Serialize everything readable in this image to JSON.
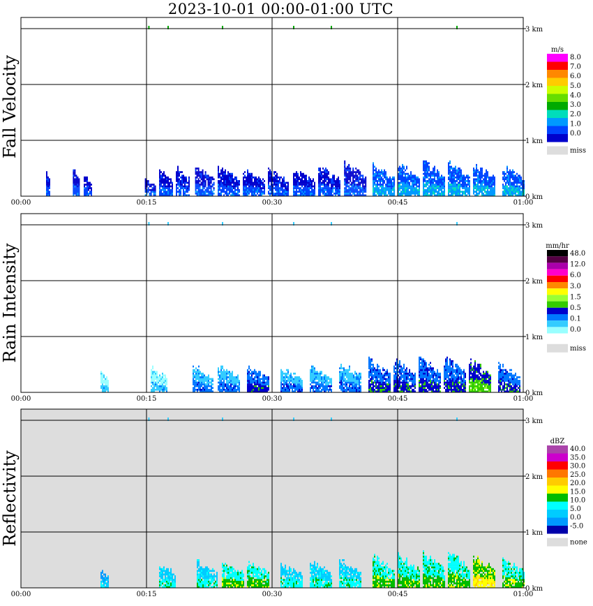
{
  "title": "2023-10-01   00:00-01:00 UTC",
  "x_ticks": [
    "00:00",
    "00:15",
    "00:30",
    "00:45",
    "01:00"
  ],
  "y_ticks": [
    "0 km",
    "1 km",
    "2 km",
    "3 km"
  ],
  "chart_data": [
    {
      "type": "heatmap",
      "panel": "Fall Velocity",
      "ylabel": "Fall Velocity",
      "x_range_min": [
        0,
        60
      ],
      "ylim_km": [
        0,
        3.2
      ],
      "grid": true,
      "background": "#ffffff",
      "colorbar": {
        "unit": "m/s",
        "tick_labels": [
          "8.0",
          "7.0",
          "6.0",
          "5.0",
          "4.0",
          "3.0",
          "2.0",
          "1.0",
          "0.0"
        ],
        "colors": [
          "#ff00ff",
          "#ff0000",
          "#ff8800",
          "#ffcc00",
          "#ccff00",
          "#66dd00",
          "#00aa00",
          "#00ddbb",
          "#0099ff",
          "#0044ff",
          "#0000cc"
        ],
        "missing_label": "miss",
        "missing_color": "#dddddd"
      },
      "bursts": [
        {
          "t": 3.0,
          "w": 0.5,
          "top_km": 0.4,
          "level": 0
        },
        {
          "t": 6.2,
          "w": 0.8,
          "top_km": 0.45,
          "level": 0
        },
        {
          "t": 7.5,
          "w": 1.0,
          "top_km": 0.35,
          "level": 0
        },
        {
          "t": 14.8,
          "w": 1.2,
          "top_km": 0.3,
          "level": 0
        },
        {
          "t": 16.5,
          "w": 1.6,
          "top_km": 0.45,
          "level": 0
        },
        {
          "t": 18.5,
          "w": 1.6,
          "top_km": 0.5,
          "level": 0
        },
        {
          "t": 20.8,
          "w": 2.2,
          "top_km": 0.5,
          "level": 0
        },
        {
          "t": 23.5,
          "w": 2.6,
          "top_km": 0.5,
          "level": 0
        },
        {
          "t": 26.5,
          "w": 2.6,
          "top_km": 0.45,
          "level": 0
        },
        {
          "t": 29.5,
          "w": 2.4,
          "top_km": 0.45,
          "level": 0
        },
        {
          "t": 32.5,
          "w": 2.6,
          "top_km": 0.45,
          "level": 0
        },
        {
          "t": 35.5,
          "w": 2.6,
          "top_km": 0.5,
          "level": 0
        },
        {
          "t": 38.6,
          "w": 2.6,
          "top_km": 0.55,
          "level": 0
        },
        {
          "t": 42.0,
          "w": 2.6,
          "top_km": 0.55,
          "level": 1
        },
        {
          "t": 45.0,
          "w": 2.6,
          "top_km": 0.55,
          "level": 1
        },
        {
          "t": 48.0,
          "w": 2.6,
          "top_km": 0.6,
          "level": 1
        },
        {
          "t": 51.0,
          "w": 2.6,
          "top_km": 0.6,
          "level": 1
        },
        {
          "t": 54.0,
          "w": 2.6,
          "top_km": 0.55,
          "level": 1
        },
        {
          "t": 57.5,
          "w": 2.6,
          "top_km": 0.5,
          "level": 1
        }
      ]
    },
    {
      "type": "heatmap",
      "panel": "Rain Intensity",
      "ylabel": "Rain Intensity",
      "x_range_min": [
        0,
        60
      ],
      "ylim_km": [
        0,
        3.2
      ],
      "grid": true,
      "background": "#ffffff",
      "colorbar": {
        "unit": "mm/hr",
        "tick_labels": [
          "48.0",
          "12.0",
          "6.0",
          "3.0",
          "1.5",
          "0.5",
          "0.1",
          "0.0"
        ],
        "colors": [
          "#000000",
          "#550044",
          "#aa00aa",
          "#ff00cc",
          "#ff0000",
          "#ff8800",
          "#ffff00",
          "#99ff33",
          "#33cc00",
          "#0000cc",
          "#0077ff",
          "#33ccff",
          "#99ffff",
          "#ffffff"
        ],
        "missing_label": "miss",
        "missing_color": "#dddddd"
      },
      "bursts": [
        {
          "t": 9.5,
          "w": 1.0,
          "top_km": 0.35,
          "level": 0
        },
        {
          "t": 15.5,
          "w": 2.0,
          "top_km": 0.45,
          "level": 0
        },
        {
          "t": 20.5,
          "w": 2.4,
          "top_km": 0.45,
          "level": 1
        },
        {
          "t": 23.5,
          "w": 2.6,
          "top_km": 0.45,
          "level": 1
        },
        {
          "t": 27.0,
          "w": 2.6,
          "top_km": 0.45,
          "level": 2
        },
        {
          "t": 31.0,
          "w": 2.6,
          "top_km": 0.4,
          "level": 1
        },
        {
          "t": 34.5,
          "w": 2.6,
          "top_km": 0.45,
          "level": 1
        },
        {
          "t": 38.0,
          "w": 2.6,
          "top_km": 0.5,
          "level": 1
        },
        {
          "t": 41.5,
          "w": 2.6,
          "top_km": 0.55,
          "level": 2
        },
        {
          "t": 44.5,
          "w": 2.6,
          "top_km": 0.55,
          "level": 2
        },
        {
          "t": 47.5,
          "w": 2.6,
          "top_km": 0.6,
          "level": 2
        },
        {
          "t": 50.5,
          "w": 2.6,
          "top_km": 0.6,
          "level": 2
        },
        {
          "t": 53.5,
          "w": 2.6,
          "top_km": 0.55,
          "level": 3
        },
        {
          "t": 57.0,
          "w": 2.6,
          "top_km": 0.5,
          "level": 2
        }
      ]
    },
    {
      "type": "heatmap",
      "panel": "Reflectivity",
      "ylabel": "Reflectivity",
      "x_range_min": [
        0,
        60
      ],
      "ylim_km": [
        0,
        3.2
      ],
      "grid": true,
      "background": "#dddddd",
      "colorbar": {
        "unit": "dBZ",
        "tick_labels": [
          "40.0",
          "35.0",
          "30.0",
          "25.0",
          "20.0",
          "15.0",
          "10.0",
          "5.0",
          "0.0",
          "-5.0"
        ],
        "colors": [
          "#aa44aa",
          "#cc00cc",
          "#ff0000",
          "#ff7700",
          "#ffcc00",
          "#ffff00",
          "#00bb00",
          "#00ffff",
          "#00ccff",
          "#0099ff",
          "#0000aa"
        ],
        "missing_label": "none",
        "missing_color": "#dddddd"
      },
      "bursts": [
        {
          "t": 9.5,
          "w": 1.0,
          "top_km": 0.3,
          "level": 0
        },
        {
          "t": 16.5,
          "w": 2.0,
          "top_km": 0.4,
          "level": 1
        },
        {
          "t": 21.0,
          "w": 2.4,
          "top_km": 0.45,
          "level": 1
        },
        {
          "t": 24.0,
          "w": 2.6,
          "top_km": 0.45,
          "level": 2
        },
        {
          "t": 27.0,
          "w": 2.6,
          "top_km": 0.45,
          "level": 2
        },
        {
          "t": 31.0,
          "w": 2.6,
          "top_km": 0.4,
          "level": 1
        },
        {
          "t": 34.5,
          "w": 2.6,
          "top_km": 0.45,
          "level": 1
        },
        {
          "t": 38.0,
          "w": 2.6,
          "top_km": 0.5,
          "level": 1
        },
        {
          "t": 42.0,
          "w": 2.6,
          "top_km": 0.55,
          "level": 2
        },
        {
          "t": 45.0,
          "w": 2.6,
          "top_km": 0.55,
          "level": 2
        },
        {
          "t": 48.0,
          "w": 2.6,
          "top_km": 0.6,
          "level": 2
        },
        {
          "t": 51.0,
          "w": 2.6,
          "top_km": 0.6,
          "level": 2
        },
        {
          "t": 54.0,
          "w": 2.6,
          "top_km": 0.55,
          "level": 3
        },
        {
          "t": 57.5,
          "w": 2.6,
          "top_km": 0.5,
          "level": 2
        }
      ]
    }
  ]
}
